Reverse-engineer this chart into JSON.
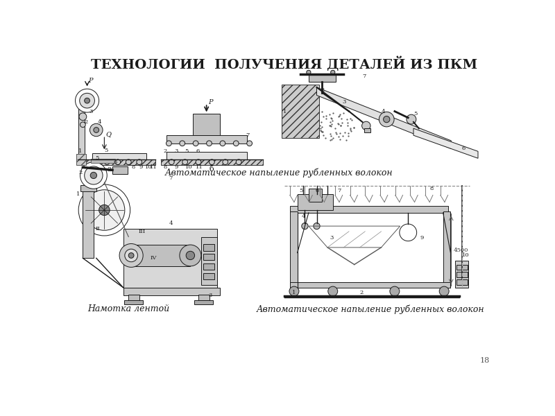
{
  "title": "ТЕХНОЛОГИИ  ПОЛУЧЕНИЯ ДЕТАЛЕЙ ИЗ ПКМ",
  "title_fontsize": 14,
  "title_fontweight": "bold",
  "caption_top": "Автоматическое напыление рубленных волокон",
  "caption_bottom_left": "Намотка лентой",
  "caption_bottom_right": "Автоматическое напыление рубленных волокон",
  "page_number": "18",
  "bg_color": "#ffffff",
  "line_color": "#1a1a1a",
  "caption_fontsize": 9,
  "caption_fontstyle": "italic"
}
